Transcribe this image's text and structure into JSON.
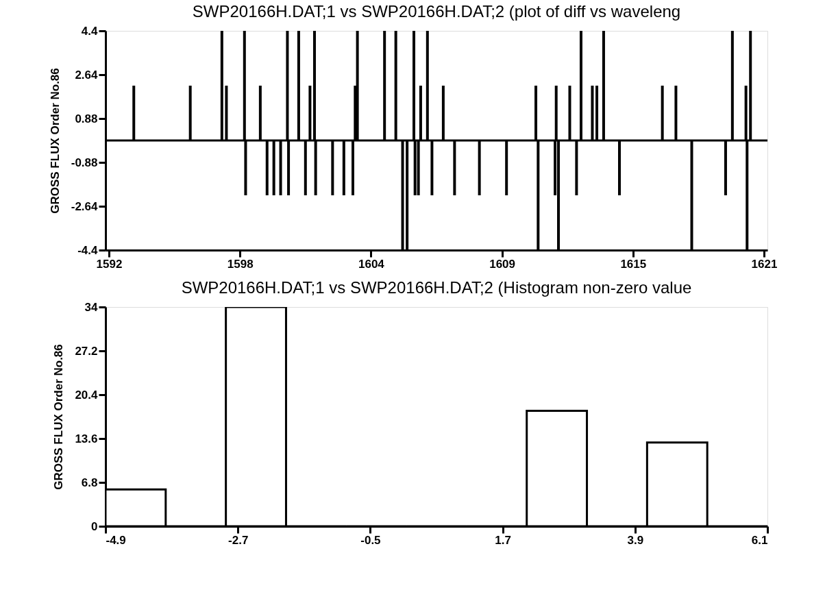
{
  "chart_data": [
    {
      "type": "bar",
      "title": "SWP20166H.DAT;1 vs SWP20166H.DAT;2 (plot of diff vs waveleng",
      "ylabel": "GROSS FLUX Order No.86",
      "x": [
        1593.1,
        1595.6,
        1597.0,
        1597.2,
        1598.0,
        1598.05,
        1598.7,
        1599.0,
        1599.3,
        1599.6,
        1599.9,
        1599.95,
        1600.4,
        1600.7,
        1600.9,
        1601.1,
        1601.15,
        1601.9,
        1602.4,
        1602.8,
        1602.9,
        1603.0,
        1604.2,
        1604.7,
        1605.0,
        1605.2,
        1605.5,
        1605.55,
        1605.7,
        1605.8,
        1606.1,
        1606.3,
        1606.8,
        1607.3,
        1608.4,
        1609.6,
        1610.9,
        1611.0,
        1611.75,
        1611.8,
        1611.9,
        1612.4,
        1612.7,
        1612.9,
        1613.4,
        1613.6,
        1613.9,
        1614.6,
        1616.5,
        1617.1,
        1617.8,
        1619.3,
        1619.6,
        1620.2,
        1620.25,
        1620.4
      ],
      "values": [
        2.2,
        2.2,
        4.4,
        2.2,
        4.4,
        -2.2,
        2.2,
        -2.2,
        -2.2,
        -2.2,
        4.4,
        -2.2,
        4.4,
        -2.2,
        2.2,
        4.4,
        -2.2,
        -2.2,
        -2.2,
        -2.2,
        2.2,
        4.4,
        4.4,
        4.4,
        -4.4,
        -4.4,
        4.4,
        -2.2,
        -2.2,
        2.2,
        4.4,
        -2.2,
        2.2,
        -2.2,
        -2.2,
        -2.2,
        2.2,
        -4.4,
        -2.2,
        2.2,
        -4.4,
        2.2,
        -2.2,
        4.4,
        2.2,
        2.2,
        4.4,
        -2.2,
        2.2,
        2.2,
        -4.4,
        -2.2,
        4.4,
        2.2,
        -4.4,
        4.4
      ],
      "color": "#000000",
      "xlim": [
        1592,
        1621
      ],
      "xticks": [
        1592,
        {
          "value": 1597.8,
          "label": "1598"
        },
        {
          "value": 1603.6,
          "label": "1604"
        },
        {
          "value": 1609.4,
          "label": "1609"
        },
        {
          "value": 1615.2,
          "label": "1615"
        },
        1621
      ],
      "ylim": [
        -4.4,
        4.4
      ],
      "yticks": [
        -4.4,
        -2.64,
        -0.88,
        0.88,
        2.64,
        4.4
      ],
      "ref_lines": [
        {
          "axis": "y",
          "value": 0,
          "color": "#000000"
        }
      ],
      "grid": false
    },
    {
      "type": "histogram",
      "title": "SWP20166H.DAT;1 vs SWP20166H.DAT;2 (Histogram non-zero value",
      "ylabel": "GROSS FLUX Order No.86",
      "bins": [
        -4.9,
        -3.9,
        -2.9,
        -1.9,
        -0.9,
        0.1,
        1.1,
        2.1,
        3.1,
        4.1,
        5.1,
        6.1
      ],
      "values": [
        5.7,
        0,
        34,
        0,
        0,
        0,
        0,
        17.9,
        0,
        13.0,
        0
      ],
      "color": "#000000",
      "xlim": [
        -4.9,
        6.1
      ],
      "xticks": [
        -4.9,
        -2.7,
        -0.5,
        1.7,
        3.9,
        6.1
      ],
      "ylim": [
        0,
        34
      ],
      "yticks": [
        0,
        6.8,
        13.6,
        20.4,
        27.2,
        34
      ],
      "grid": false
    }
  ]
}
